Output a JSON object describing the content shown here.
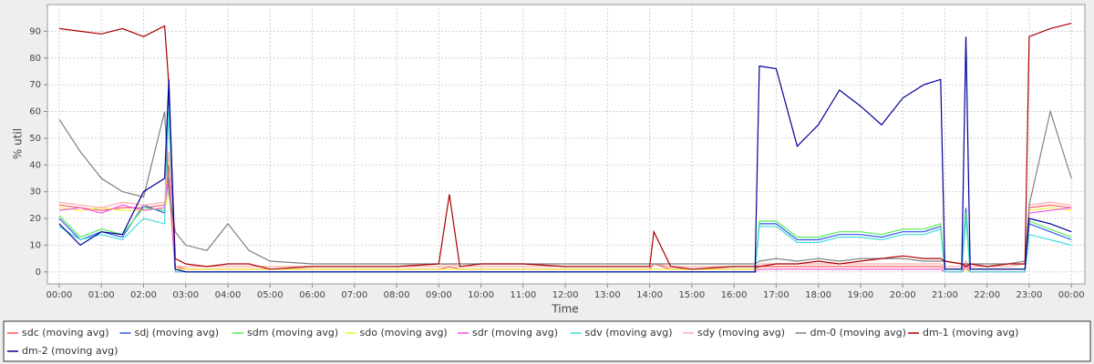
{
  "chart_data": {
    "type": "line",
    "x_label": "Time",
    "y_label": "% util",
    "x": [
      0,
      0.5,
      1,
      1.5,
      2,
      2.5,
      2.6,
      2.75,
      3,
      3.5,
      4,
      4.5,
      5,
      6,
      7,
      8,
      9,
      9.25,
      9.5,
      10,
      11,
      12,
      13,
      14,
      14.1,
      14.5,
      15,
      16,
      16.5,
      16.6,
      17,
      17.5,
      18,
      18.5,
      19,
      19.5,
      20,
      20.5,
      20.9,
      21,
      21.4,
      21.5,
      21.6,
      22,
      22.5,
      22.9,
      23,
      23.5,
      24
    ],
    "xlim": [
      -0.28,
      24.32
    ],
    "xticks": [
      {
        "value": 0,
        "label": "00:00"
      },
      {
        "value": 1,
        "label": "01:00"
      },
      {
        "value": 2,
        "label": "02:00"
      },
      {
        "value": 3,
        "label": "03:00"
      },
      {
        "value": 4,
        "label": "04:00"
      },
      {
        "value": 5,
        "label": "05:00"
      },
      {
        "value": 6,
        "label": "06:00"
      },
      {
        "value": 7,
        "label": "07:00"
      },
      {
        "value": 8,
        "label": "08:00"
      },
      {
        "value": 9,
        "label": "09:00"
      },
      {
        "value": 10,
        "label": "10:00"
      },
      {
        "value": 11,
        "label": "11:00"
      },
      {
        "value": 12,
        "label": "12:00"
      },
      {
        "value": 13,
        "label": "13:00"
      },
      {
        "value": 14,
        "label": "14:00"
      },
      {
        "value": 15,
        "label": "15:00"
      },
      {
        "value": 16,
        "label": "16:00"
      },
      {
        "value": 17,
        "label": "17:00"
      },
      {
        "value": 18,
        "label": "18:00"
      },
      {
        "value": 19,
        "label": "19:00"
      },
      {
        "value": 20,
        "label": "20:00"
      },
      {
        "value": 21,
        "label": "21:00"
      },
      {
        "value": 22,
        "label": "22:00"
      },
      {
        "value": 23,
        "label": "23:00"
      },
      {
        "value": 24,
        "label": "00:00"
      }
    ],
    "ylim": [
      -4.5,
      100
    ],
    "yticks": [
      0,
      10,
      20,
      30,
      40,
      50,
      60,
      70,
      80,
      90
    ],
    "grid": true,
    "legend": "bottom",
    "series": [
      {
        "name": "sdc (moving avg)",
        "color": "#ff5555",
        "values": [
          25,
          24,
          23,
          24,
          24,
          25,
          40,
          2,
          1,
          1,
          1,
          1,
          1,
          1,
          1,
          1,
          1,
          2,
          1,
          1,
          1,
          1,
          1,
          1,
          3,
          1,
          1,
          1,
          1,
          2,
          2,
          2,
          2,
          2,
          2,
          2,
          2,
          2,
          2,
          1,
          1,
          3,
          1,
          1,
          1,
          1,
          24,
          25,
          24
        ]
      },
      {
        "name": "sdj (moving avg)",
        "color": "#3355ee",
        "values": [
          20,
          12,
          15,
          13,
          25,
          22,
          65,
          1,
          0,
          0,
          0,
          0,
          0,
          0,
          0,
          0,
          0,
          0,
          0,
          0,
          0,
          0,
          0,
          0,
          0,
          0,
          0,
          0,
          0,
          18,
          18,
          12,
          12,
          14,
          14,
          13,
          15,
          15,
          17,
          1,
          1,
          24,
          1,
          1,
          1,
          1,
          18,
          15,
          12
        ]
      },
      {
        "name": "sdm (moving avg)",
        "color": "#55ee55",
        "values": [
          21,
          13,
          16,
          14,
          24,
          23,
          60,
          1,
          0,
          0,
          0,
          0,
          0,
          0,
          0,
          0,
          0,
          0,
          0,
          0,
          0,
          0,
          0,
          0,
          0,
          0,
          0,
          0,
          0,
          19,
          19,
          13,
          13,
          15,
          15,
          14,
          16,
          16,
          18,
          1,
          1,
          22,
          1,
          1,
          1,
          1,
          19,
          16,
          13
        ]
      },
      {
        "name": "sdo (moving avg)",
        "color": "#eeee33",
        "values": [
          24,
          23,
          24,
          23,
          23,
          24,
          30,
          1,
          1,
          1,
          1,
          1,
          1,
          1,
          1,
          1,
          1,
          1,
          1,
          1,
          1,
          1,
          1,
          1,
          1,
          1,
          1,
          1,
          1,
          1,
          1,
          1,
          1,
          1,
          1,
          1,
          1,
          1,
          1,
          0,
          0,
          1,
          0,
          0,
          0,
          0,
          23,
          24,
          23
        ]
      },
      {
        "name": "sdr (moving avg)",
        "color": "#ee55ee",
        "values": [
          23,
          24,
          22,
          25,
          23,
          24,
          35,
          0,
          0,
          0,
          0,
          0,
          0,
          0,
          0,
          0,
          0,
          0,
          0,
          0,
          0,
          0,
          0,
          0,
          0,
          0,
          0,
          0,
          0,
          1,
          1,
          1,
          1,
          1,
          1,
          1,
          1,
          1,
          1,
          0,
          0,
          2,
          0,
          0,
          0,
          0,
          22,
          23,
          24
        ]
      },
      {
        "name": "sdv (moving avg)",
        "color": "#44dddd",
        "values": [
          17,
          12,
          14,
          12,
          20,
          18,
          62,
          0,
          0,
          0,
          0,
          0,
          0,
          0,
          0,
          0,
          0,
          0,
          0,
          0,
          0,
          0,
          0,
          0,
          0,
          0,
          0,
          0,
          0,
          17,
          17,
          11,
          11,
          13,
          13,
          12,
          14,
          14,
          16,
          0,
          0,
          20,
          0,
          0,
          0,
          0,
          14,
          12,
          10
        ]
      },
      {
        "name": "sdy (moving avg)",
        "color": "#ffaaaa",
        "values": [
          26,
          25,
          24,
          26,
          25,
          26,
          45,
          2,
          2,
          2,
          2,
          2,
          2,
          2,
          2,
          2,
          2,
          3,
          2,
          2,
          2,
          2,
          2,
          2,
          3,
          2,
          2,
          2,
          2,
          3,
          3,
          3,
          3,
          3,
          3,
          3,
          3,
          3,
          3,
          2,
          2,
          4,
          2,
          2,
          2,
          3,
          25,
          26,
          25
        ]
      },
      {
        "name": "dm-0 (moving avg)",
        "color": "#808080",
        "values": [
          57,
          45,
          35,
          30,
          28,
          60,
          30,
          15,
          10,
          8,
          18,
          8,
          4,
          3,
          3,
          3,
          3,
          3,
          3,
          3,
          3,
          3,
          3,
          3,
          3,
          3,
          3,
          3,
          3,
          4,
          5,
          4,
          5,
          4,
          5,
          5,
          5,
          4,
          4,
          4,
          3,
          3,
          3,
          3,
          3,
          4,
          25,
          60,
          35
        ]
      },
      {
        "name": "dm-1 (moving avg)",
        "color": "#aa0000",
        "values": [
          91,
          90,
          89,
          91,
          88,
          92,
          70,
          5,
          3,
          2,
          3,
          3,
          1,
          2,
          2,
          2,
          3,
          29,
          2,
          3,
          3,
          2,
          2,
          2,
          15,
          2,
          1,
          2,
          2,
          2,
          3,
          3,
          4,
          3,
          4,
          5,
          6,
          5,
          5,
          4,
          3,
          2,
          3,
          2,
          3,
          3,
          88,
          91,
          93
        ]
      },
      {
        "name": "dm-2 (moving avg)",
        "color": "#000099",
        "values": [
          18,
          10,
          15,
          14,
          30,
          35,
          72,
          1,
          0,
          0,
          0,
          0,
          0,
          0,
          0,
          0,
          0,
          0,
          0,
          0,
          0,
          0,
          0,
          0,
          0,
          0,
          0,
          0,
          0,
          77,
          76,
          47,
          55,
          68,
          62,
          55,
          65,
          70,
          72,
          1,
          1,
          88,
          1,
          1,
          1,
          1,
          20,
          18,
          15
        ]
      }
    ]
  }
}
